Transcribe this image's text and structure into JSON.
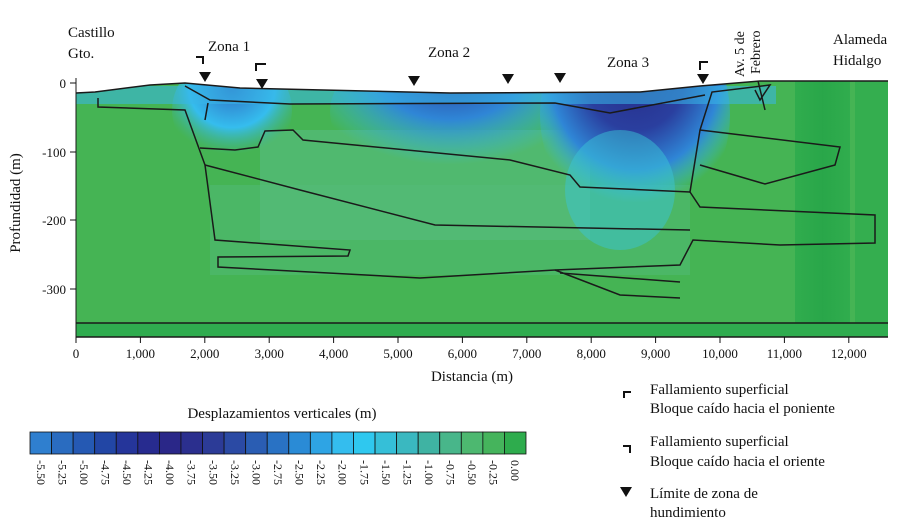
{
  "labels": {
    "castillo": "Castillo",
    "gto": "Gto.",
    "zona1": "Zona 1",
    "zona2": "Zona 2",
    "zona3": "Zona 3",
    "av5": "Av. 5 de",
    "febrero": "Febrero",
    "alameda": "Alameda",
    "hidalgo": "Hidalgo"
  },
  "axes": {
    "ylabel": "Profundidad (m)",
    "xlabel": "Distancia (m)",
    "yticks": [
      "0",
      "-100",
      "-200",
      "-300"
    ],
    "xticks": [
      "0",
      "1,000",
      "2,000",
      "3,000",
      "4,000",
      "5,000",
      "6,000",
      "7,000",
      "8,000",
      "9,000",
      "10,000",
      "11,000",
      "12,000"
    ]
  },
  "colorbar": {
    "title": "Desplazamientos verticales  (m)",
    "values": [
      "-5.50",
      "-5.25",
      "-5.00",
      "-4.75",
      "-4.50",
      "-4.25",
      "-4.00",
      "-3.75",
      "-3.50",
      "-3.25",
      "-3.00",
      "-2.75",
      "-2.50",
      "-2.25",
      "-2.00",
      "-1.75",
      "-1.50",
      "-1.25",
      "-1.00",
      "-0.75",
      "-0.50",
      "-0.25",
      "0.00"
    ],
    "colors": [
      "#2f7fcf",
      "#2a6cc0",
      "#2559b3",
      "#2246a5",
      "#25359a",
      "#272b8f",
      "#2a2788",
      "#2b2f8e",
      "#2c3b97",
      "#2b4aa4",
      "#2a5db3",
      "#2972c4",
      "#2a8bd6",
      "#2ea4e4",
      "#34bdee",
      "#2fc8ef",
      "#35bfd8",
      "#3ab8c0",
      "#3fb3a3",
      "#48b68a",
      "#4db870",
      "#45b45c",
      "#2eac4d"
    ]
  },
  "legend": {
    "items": [
      {
        "line1": "Fallamiento superficial",
        "line2": "Bloque caído hacia el poniente",
        "icon": "fault-west-icon"
      },
      {
        "line1": "Fallamiento superficial",
        "line2": "Bloque caído hacia el oriente",
        "icon": "fault-east-icon"
      },
      {
        "line1": "Límite de zona de",
        "line2": "hundimiento",
        "icon": "triangle-down-icon"
      }
    ]
  },
  "colors": {
    "background_green": "#45b454",
    "deep_blue": "#262c8c",
    "light_blue": "#35bdee",
    "outline": "#1a1a1a"
  }
}
